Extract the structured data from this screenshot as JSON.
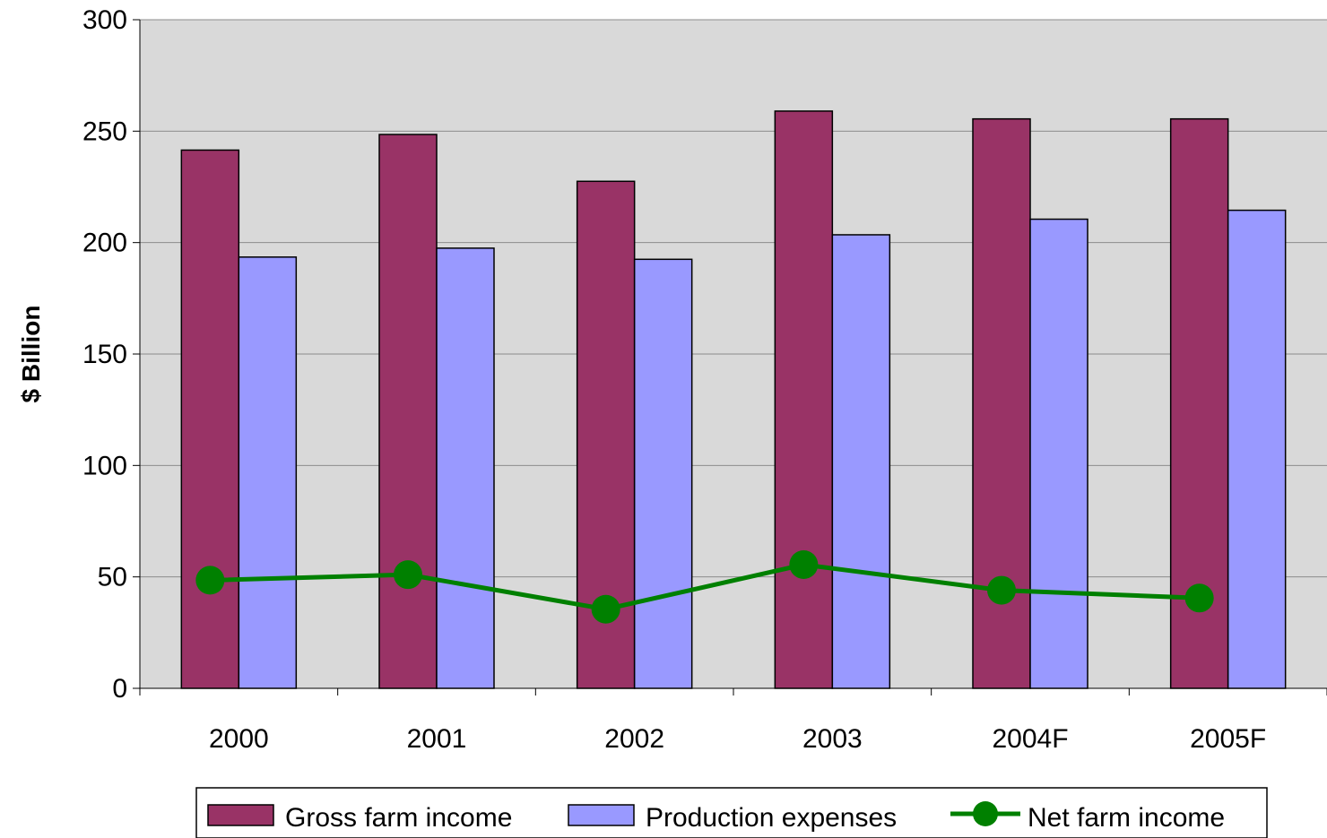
{
  "chart_data": {
    "type": "bar",
    "title": "",
    "xlabel": "",
    "ylabel": "$ Billion",
    "ylim": [
      0,
      300
    ],
    "yticks": [
      0,
      50,
      100,
      150,
      200,
      250,
      300
    ],
    "categories": [
      "2000",
      "2001",
      "2002",
      "2003",
      "2004F",
      "2005F"
    ],
    "series": [
      {
        "name": "Gross farm income",
        "kind": "bar",
        "color": "#993366",
        "values": [
          241.5,
          248.5,
          227.5,
          259,
          255.5,
          255.5
        ]
      },
      {
        "name": "Production expenses",
        "kind": "bar",
        "color": "#9999ff",
        "values": [
          193.5,
          197.5,
          192.5,
          203.5,
          210.5,
          214.5
        ]
      },
      {
        "name": "Net farm income",
        "kind": "line",
        "color": "#008000",
        "values": [
          48.5,
          51,
          35.5,
          55.5,
          44,
          40.5
        ]
      }
    ],
    "plot_background": "#d9d9d9",
    "grid": true,
    "legend_position": "bottom"
  }
}
